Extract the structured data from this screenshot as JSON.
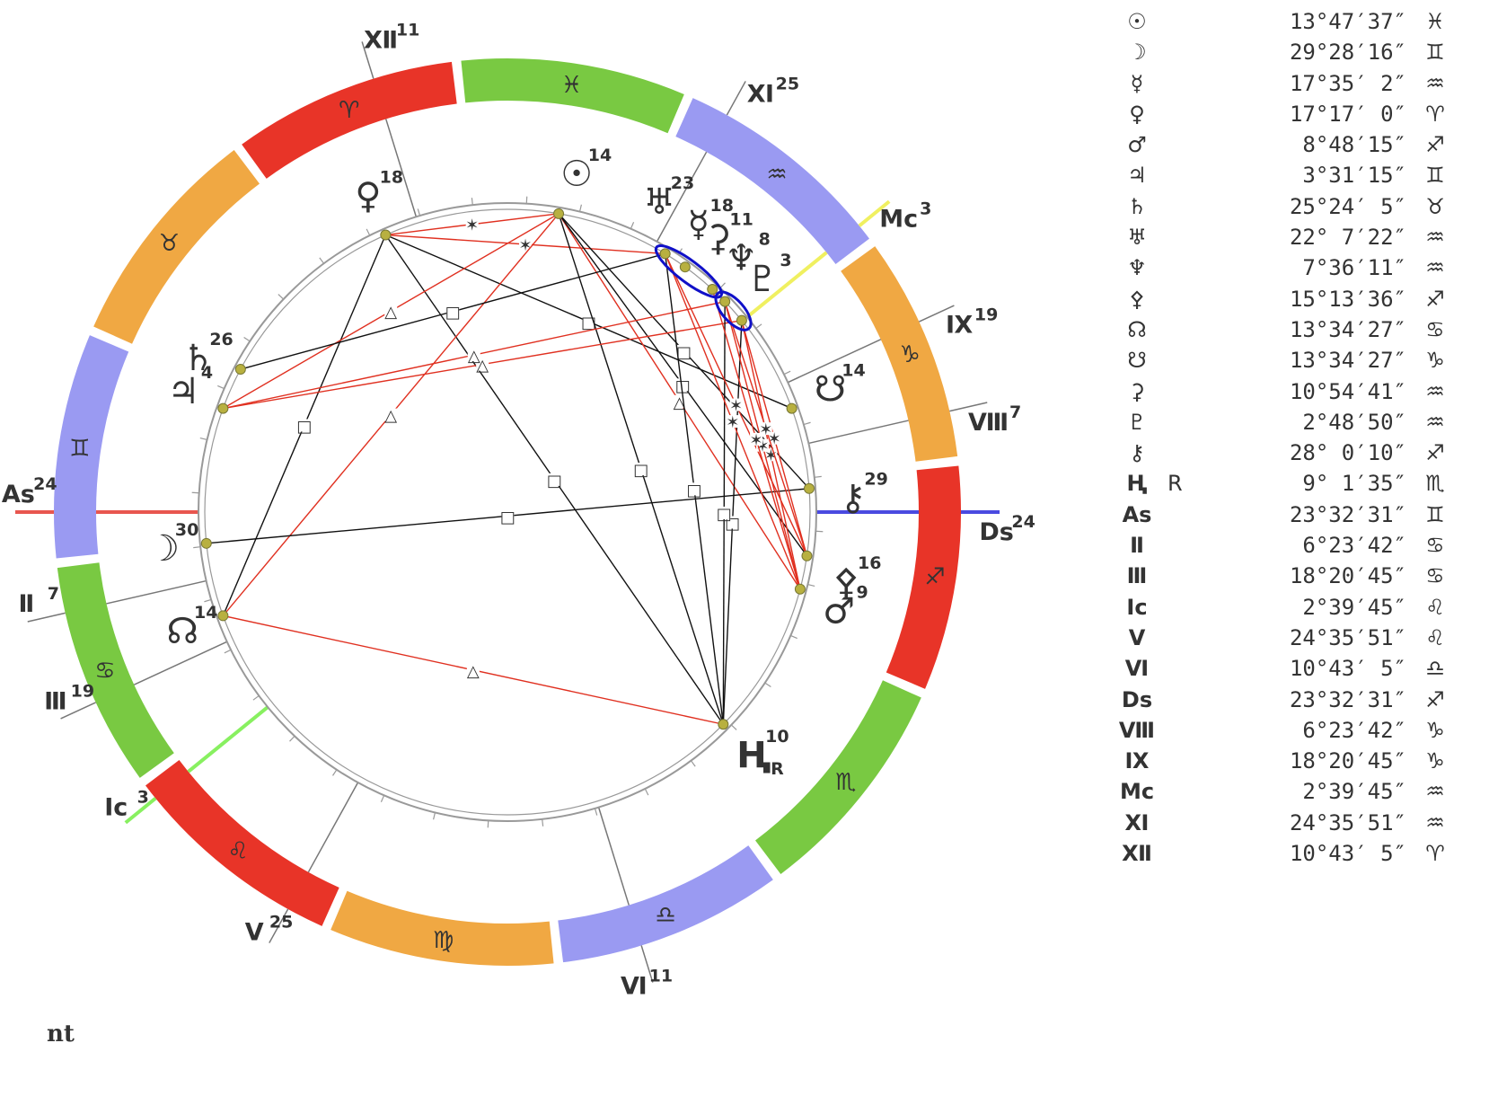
{
  "zodiac_signs": [
    {
      "glyph": "♈",
      "color": "#e83428"
    },
    {
      "glyph": "♉",
      "color": "#f0a843"
    },
    {
      "glyph": "♊",
      "color": "#9a9af2"
    },
    {
      "glyph": "♋",
      "color": "#79c942"
    },
    {
      "glyph": "♌",
      "color": "#e83428"
    },
    {
      "glyph": "♍",
      "color": "#f0a843"
    },
    {
      "glyph": "♎",
      "color": "#9a9af2"
    },
    {
      "glyph": "♏",
      "color": "#79c942"
    },
    {
      "glyph": "♐",
      "color": "#e83428"
    },
    {
      "glyph": "♑",
      "color": "#f0a843"
    },
    {
      "glyph": "♒",
      "color": "#9a9af2"
    },
    {
      "glyph": "♓",
      "color": "#79c942"
    }
  ],
  "houses": [
    {
      "label": "As",
      "deg": "24",
      "lon": 83.54
    },
    {
      "label": "Ⅱ",
      "deg": "7",
      "lon": 96.4
    },
    {
      "label": "Ⅲ",
      "deg": "19",
      "lon": 108.35
    },
    {
      "label": "Ic",
      "deg": "3",
      "lon": 122.66
    },
    {
      "label": "Ⅴ",
      "deg": "25",
      "lon": 144.6
    },
    {
      "label": "Ⅵ",
      "deg": "11",
      "lon": 190.72
    },
    {
      "label": "Ds",
      "deg": "24",
      "lon": 263.54
    },
    {
      "label": "Ⅷ",
      "deg": "7",
      "lon": 276.4
    },
    {
      "label": "Ⅸ",
      "deg": "19",
      "lon": 288.35
    },
    {
      "label": "Mc",
      "deg": "3",
      "lon": 302.66
    },
    {
      "label": "Ⅺ",
      "deg": "25",
      "lon": 324.6
    },
    {
      "label": "Ⅻ",
      "deg": "11",
      "lon": 10.72
    }
  ],
  "planets": [
    {
      "name": "sun",
      "glyph": "☉",
      "deg": "14",
      "lon": 343.79,
      "label_lon": 342
    },
    {
      "name": "moon",
      "glyph": "☽",
      "deg": "30",
      "lon": 89.47,
      "label_lon": 89.5
    },
    {
      "name": "mercury",
      "glyph": "☿",
      "deg": "18",
      "lon": 317.59,
      "label_lon": 320
    },
    {
      "name": "venus",
      "glyph": "♀",
      "deg": "18",
      "lon": 17.28,
      "label_lon": 17.3
    },
    {
      "name": "mars",
      "glyph": "♂",
      "deg": "9",
      "lon": 248.8,
      "label_lon": 247
    },
    {
      "name": "jupiter",
      "glyph": "♃",
      "deg": "4",
      "lon": 63.52,
      "label_lon": 63
    },
    {
      "name": "saturn",
      "glyph": "♄",
      "deg": "26",
      "lon": 55.4,
      "label_lon": 57
    },
    {
      "name": "uranus",
      "glyph": "♅",
      "deg": "23",
      "lon": 322.12,
      "label_lon": 327.5
    },
    {
      "name": "neptune",
      "glyph": "♆",
      "deg": "8",
      "lon": 307.6,
      "label_lon": 311
    },
    {
      "name": "pallas",
      "glyph": "⚴",
      "deg": "16",
      "lon": 255.23,
      "label_lon": 252
    },
    {
      "name": "north-node",
      "glyph": "☊",
      "deg": "14",
      "lon": 103.57,
      "label_lon": 103.57
    },
    {
      "name": "south-node",
      "glyph": "☋",
      "deg": "14",
      "lon": 283.57,
      "label_lon": 284.5
    },
    {
      "name": "ceres",
      "glyph": "⚳",
      "deg": "11",
      "lon": 310.91,
      "label_lon": 316
    },
    {
      "name": "pluto",
      "glyph": "♇",
      "deg": "3",
      "lon": 302.81,
      "label_lon": 306
    },
    {
      "name": "chiron",
      "glyph": "⚷",
      "deg": "29",
      "lon": 268.0,
      "label_lon": 266
    },
    {
      "name": "eris",
      "glyph": "Ⱨ",
      "deg": "10",
      "lon": 219.03,
      "label_lon": 219,
      "retro": "R"
    }
  ],
  "aspects": [
    {
      "a": "venus",
      "b": "sun",
      "type": "sextile"
    },
    {
      "a": "venus",
      "b": "uranus",
      "type": "sextile"
    },
    {
      "a": "venus",
      "b": "eris",
      "type": "square"
    },
    {
      "a": "venus",
      "b": "south-node",
      "type": "square"
    },
    {
      "a": "venus",
      "b": "north-node",
      "type": "square"
    },
    {
      "a": "sun",
      "b": "jupiter",
      "type": "trine"
    },
    {
      "a": "sun",
      "b": "north-node",
      "type": "trine"
    },
    {
      "a": "sun",
      "b": "mars",
      "type": "trine"
    },
    {
      "a": "sun",
      "b": "pallas",
      "type": "square"
    },
    {
      "a": "sun",
      "b": "eris",
      "type": "square"
    },
    {
      "a": "sun",
      "b": "chiron",
      "type": "square"
    },
    {
      "a": "saturn",
      "b": "uranus",
      "type": "square"
    },
    {
      "a": "jupiter",
      "b": "pluto",
      "type": "trine"
    },
    {
      "a": "jupiter",
      "b": "neptune",
      "type": "trine"
    },
    {
      "a": "moon",
      "b": "chiron",
      "type": "opposition"
    },
    {
      "a": "north-node",
      "b": "eris",
      "type": "trine"
    },
    {
      "a": "eris",
      "b": "uranus",
      "type": "square"
    },
    {
      "a": "eris",
      "b": "pluto",
      "type": "square"
    },
    {
      "a": "eris",
      "b": "neptune",
      "type": "square"
    },
    {
      "a": "uranus",
      "b": "mars",
      "type": "sextile"
    },
    {
      "a": "uranus",
      "b": "pallas",
      "type": "sextile"
    },
    {
      "a": "pluto",
      "b": "mars",
      "type": "sextile"
    },
    {
      "a": "pluto",
      "b": "pallas",
      "type": "sextile"
    },
    {
      "a": "neptune",
      "b": "mars",
      "type": "sextile"
    },
    {
      "a": "neptune",
      "b": "pallas",
      "type": "sextile"
    },
    {
      "a": "ceres",
      "b": "mars",
      "type": "sextile"
    }
  ],
  "axis_colors": {
    "ascendant": "#e8564f",
    "descendant": "#4a4ae0",
    "mc": "#f0f060",
    "ic": "#88f060"
  },
  "conjunction_color": "#1010c8",
  "positions_table": [
    {
      "glyph": "☉",
      "retro": "",
      "value": "13°47′37″",
      "sign": "♓"
    },
    {
      "glyph": "☽",
      "retro": "",
      "value": "29°28′16″",
      "sign": "♊"
    },
    {
      "glyph": "☿",
      "retro": "",
      "value": "17°35′ 2″",
      "sign": "♒"
    },
    {
      "glyph": "♀",
      "retro": "",
      "value": "17°17′ 0″",
      "sign": "♈"
    },
    {
      "glyph": "♂",
      "retro": "",
      "value": "8°48′15″",
      "sign": "♐"
    },
    {
      "glyph": "♃",
      "retro": "",
      "value": "3°31′15″",
      "sign": "♊"
    },
    {
      "glyph": "♄",
      "retro": "",
      "value": "25°24′ 5″",
      "sign": "♉"
    },
    {
      "glyph": "♅",
      "retro": "",
      "value": "22° 7′22″",
      "sign": "♒"
    },
    {
      "glyph": "♆",
      "retro": "",
      "value": "7°36′11″",
      "sign": "♒"
    },
    {
      "glyph": "⚴",
      "retro": "",
      "value": "15°13′36″",
      "sign": "♐"
    },
    {
      "glyph": "☊",
      "retro": "",
      "value": "13°34′27″",
      "sign": "♋"
    },
    {
      "glyph": "☋",
      "retro": "",
      "value": "13°34′27″",
      "sign": "♑"
    },
    {
      "glyph": "⚳",
      "retro": "",
      "value": "10°54′41″",
      "sign": "♒"
    },
    {
      "glyph": "♇",
      "retro": "",
      "value": "2°48′50″",
      "sign": "♒"
    },
    {
      "glyph": "⚷",
      "retro": "",
      "value": "28° 0′10″",
      "sign": "♐"
    },
    {
      "glyph": "Ⱨ",
      "retro": "R",
      "value": "9° 1′35″",
      "sign": "♏"
    },
    {
      "glyph": "As",
      "retro": "",
      "value": "23°32′31″",
      "sign": "♊"
    },
    {
      "glyph": "Ⅱ",
      "retro": "",
      "value": "6°23′42″",
      "sign": "♋"
    },
    {
      "glyph": "Ⅲ",
      "retro": "",
      "value": "18°20′45″",
      "sign": "♋"
    },
    {
      "glyph": "Ic",
      "retro": "",
      "value": "2°39′45″",
      "sign": "♌"
    },
    {
      "glyph": "Ⅴ",
      "retro": "",
      "value": "24°35′51″",
      "sign": "♌"
    },
    {
      "glyph": "Ⅵ",
      "retro": "",
      "value": "10°43′ 5″",
      "sign": "♎"
    },
    {
      "glyph": "Ds",
      "retro": "",
      "value": "23°32′31″",
      "sign": "♐"
    },
    {
      "glyph": "Ⅷ",
      "retro": "",
      "value": "6°23′42″",
      "sign": "♑"
    },
    {
      "glyph": "Ⅸ",
      "retro": "",
      "value": "18°20′45″",
      "sign": "♑"
    },
    {
      "glyph": "Mc",
      "retro": "",
      "value": "2°39′45″",
      "sign": "♒"
    },
    {
      "glyph": "Ⅺ",
      "retro": "",
      "value": "24°35′51″",
      "sign": "♒"
    },
    {
      "glyph": "Ⅻ",
      "retro": "",
      "value": "10°43′ 5″",
      "sign": "♈"
    }
  ],
  "footer_label": "nt"
}
